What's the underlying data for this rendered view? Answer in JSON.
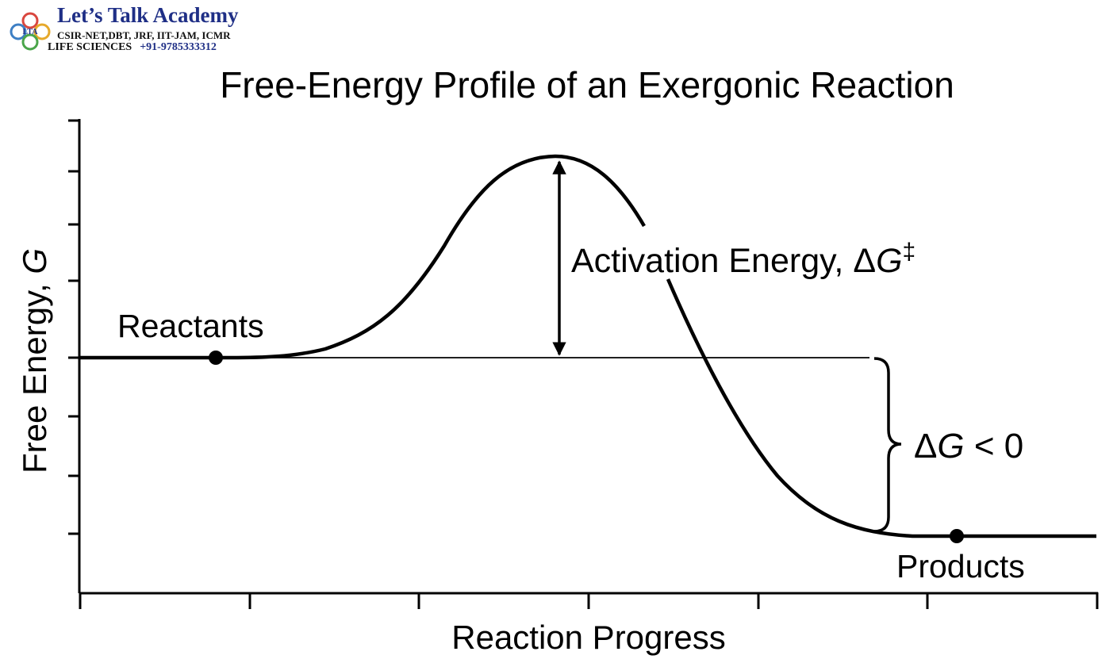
{
  "logo": {
    "brand": "Let’s Talk Academy",
    "line2": "CSIR-NET,DBT, JRF, IIT-JAM, ICMR",
    "life_sciences": "LIFE SCIENCES",
    "phone": "+91-9785333312",
    "emblem_text": "LTA"
  },
  "title": "Free-Energy Profile of an Exergonic Reaction",
  "x_axis_label": "Reaction Progress",
  "y_axis_label": {
    "prefix": "Free Energy, ",
    "symbol": "G"
  },
  "labels": {
    "reactants": "Reactants",
    "products": "Products",
    "activation": {
      "prefix": "Activation Energy, ",
      "delta": "Δ",
      "symbol": "G",
      "superscript": "‡"
    },
    "delta_g": {
      "delta": "Δ",
      "symbol": "G",
      "relation": " < 0"
    }
  },
  "colors": {
    "line": "#000000",
    "brand": "#1f2f86"
  }
}
